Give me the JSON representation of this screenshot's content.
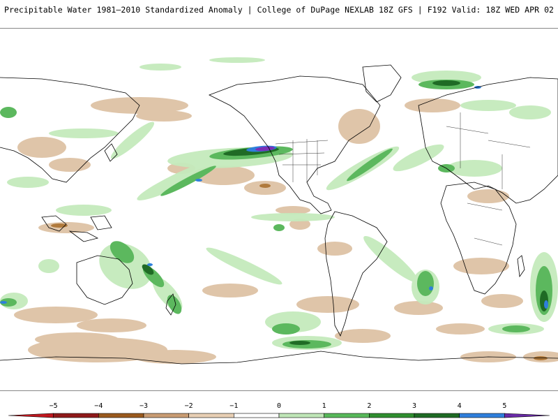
{
  "header": {
    "title": "Precipitable Water 1981–2010 Standardized Anomaly | College of DuPage NEXLAB  18Z GFS | F192 Valid: 18Z WED APR 02 2025"
  },
  "colorbar": {
    "tick_labels": [
      "−5",
      "−4",
      "−3",
      "−2",
      "−1",
      "0",
      "1",
      "2",
      "3",
      "4",
      "5"
    ],
    "colors": [
      "#c0181f",
      "#8f1a1a",
      "#9a5a1e",
      "#c99c73",
      "#e8cfb4",
      "#ffffff",
      "#bfe6b7",
      "#58b85a",
      "#2f8e2f",
      "#1f6b25",
      "#2f7fdc",
      "#6a2aa8"
    ]
  }
}
